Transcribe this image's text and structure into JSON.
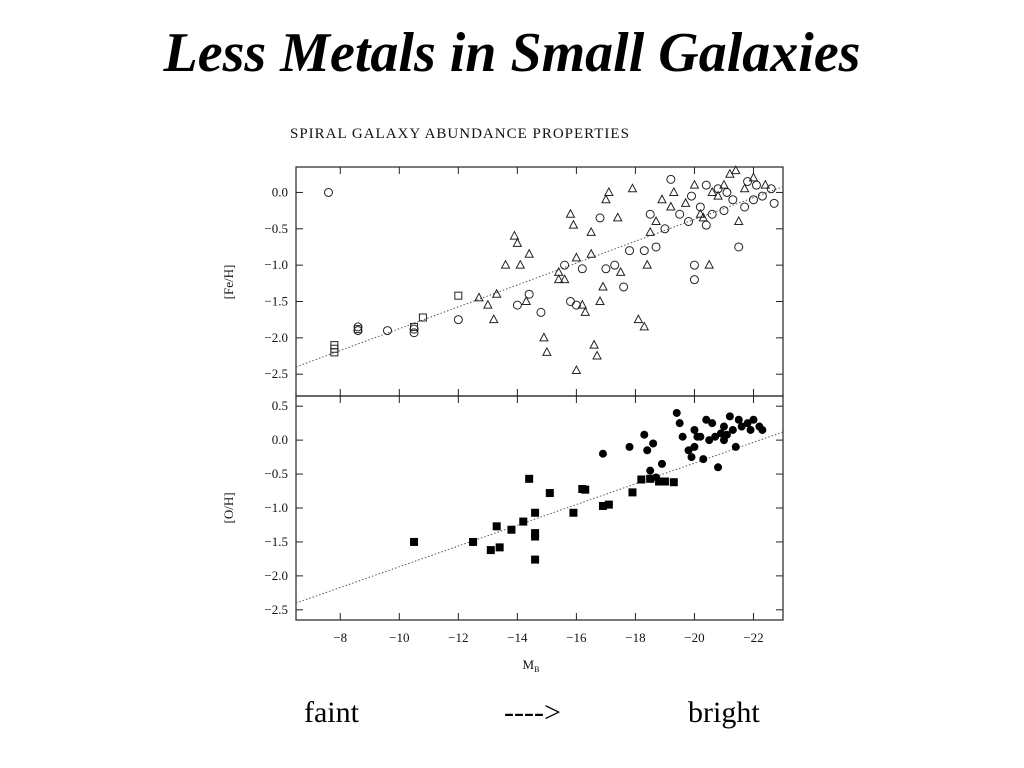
{
  "slide": {
    "title": "Less Metals in Small Galaxies",
    "caption_left": "faint",
    "caption_mid": "---->",
    "caption_right": "bright"
  },
  "chart_data": [
    {
      "type": "scatter",
      "title": "SPIRAL GALAXY ABUNDANCE PROPERTIES",
      "xlabel": "",
      "ylabel": "[Fe/H]",
      "xlim": [
        -6.5,
        -23.0
      ],
      "ylim": [
        -2.8,
        0.35
      ],
      "x_ticks": [
        -8,
        -10,
        -12,
        -14,
        -16,
        -18,
        -20,
        -22
      ],
      "x_tick_labels": [
        "−8",
        "−10",
        "−12",
        "−14",
        "−16",
        "−18",
        "−20",
        "−22"
      ],
      "y_ticks": [
        0.0,
        -0.5,
        -1.0,
        -1.5,
        -2.0,
        -2.5
      ],
      "y_tick_labels": [
        "0.0",
        "−0.5",
        "−1.0",
        "−1.5",
        "−2.0",
        "−2.5"
      ],
      "trend_line": [
        [
          -6.5,
          -2.4
        ],
        [
          -23.0,
          0.08
        ]
      ],
      "series": [
        {
          "marker": "circle",
          "points": [
            [
              -7.6,
              0.0
            ],
            [
              -8.6,
              -1.85
            ],
            [
              -8.6,
              -1.9
            ],
            [
              -9.6,
              -1.9
            ],
            [
              -10.5,
              -1.93
            ],
            [
              -10.5,
              -1.88
            ],
            [
              -12.0,
              -1.75
            ],
            [
              -14.0,
              -1.55
            ],
            [
              -14.4,
              -1.4
            ],
            [
              -14.8,
              -1.65
            ],
            [
              -15.6,
              -1.0
            ],
            [
              -15.8,
              -1.5
            ],
            [
              -16.0,
              -1.55
            ],
            [
              -16.2,
              -1.05
            ],
            [
              -16.8,
              -0.35
            ],
            [
              -17.0,
              -1.05
            ],
            [
              -17.3,
              -1.0
            ],
            [
              -17.6,
              -1.3
            ],
            [
              -17.8,
              -0.8
            ],
            [
              -18.3,
              -0.8
            ],
            [
              -18.5,
              -0.3
            ],
            [
              -18.7,
              -0.75
            ],
            [
              -19.0,
              -0.5
            ],
            [
              -19.2,
              0.18
            ],
            [
              -19.5,
              -0.3
            ],
            [
              -19.8,
              -0.4
            ],
            [
              -20.0,
              -1.0
            ],
            [
              -20.0,
              -1.2
            ],
            [
              -20.2,
              -0.2
            ],
            [
              -20.4,
              -0.45
            ],
            [
              -20.6,
              -0.3
            ],
            [
              -20.8,
              0.05
            ],
            [
              -21.0,
              -0.25
            ],
            [
              -21.3,
              -0.1
            ],
            [
              -21.5,
              -0.75
            ],
            [
              -21.7,
              -0.2
            ],
            [
              -22.0,
              -0.1
            ],
            [
              -22.3,
              -0.05
            ],
            [
              -22.6,
              0.05
            ],
            [
              -21.8,
              0.15
            ],
            [
              -20.4,
              0.1
            ],
            [
              -19.9,
              -0.05
            ],
            [
              -21.1,
              0.0
            ],
            [
              -22.1,
              0.1
            ],
            [
              -22.7,
              -0.15
            ]
          ]
        },
        {
          "marker": "square",
          "points": [
            [
              -7.8,
              -2.1
            ],
            [
              -7.8,
              -2.15
            ],
            [
              -7.8,
              -2.2
            ],
            [
              -8.6,
              -1.88
            ],
            [
              -10.5,
              -1.85
            ],
            [
              -10.8,
              -1.72
            ],
            [
              -12.0,
              -1.42
            ]
          ]
        },
        {
          "marker": "triangle",
          "points": [
            [
              -12.7,
              -1.45
            ],
            [
              -13.0,
              -1.55
            ],
            [
              -13.2,
              -1.75
            ],
            [
              -13.3,
              -1.4
            ],
            [
              -13.6,
              -1.0
            ],
            [
              -13.9,
              -0.6
            ],
            [
              -14.0,
              -0.7
            ],
            [
              -14.1,
              -1.0
            ],
            [
              -14.4,
              -0.85
            ],
            [
              -14.3,
              -1.5
            ],
            [
              -14.9,
              -2.0
            ],
            [
              -15.0,
              -2.2
            ],
            [
              -15.4,
              -1.2
            ],
            [
              -15.4,
              -1.1
            ],
            [
              -15.6,
              -1.2
            ],
            [
              -15.8,
              -0.3
            ],
            [
              -15.9,
              -0.45
            ],
            [
              -16.0,
              -0.9
            ],
            [
              -16.0,
              -2.45
            ],
            [
              -16.2,
              -1.55
            ],
            [
              -16.3,
              -1.65
            ],
            [
              -16.5,
              -0.55
            ],
            [
              -16.5,
              -0.85
            ],
            [
              -16.6,
              -2.1
            ],
            [
              -16.7,
              -2.25
            ],
            [
              -16.8,
              -1.5
            ],
            [
              -16.9,
              -1.3
            ],
            [
              -17.0,
              -0.1
            ],
            [
              -17.1,
              0.0
            ],
            [
              -17.4,
              -0.35
            ],
            [
              -17.5,
              -1.1
            ],
            [
              -17.9,
              0.05
            ],
            [
              -18.1,
              -1.75
            ],
            [
              -18.3,
              -1.85
            ],
            [
              -18.4,
              -1.0
            ],
            [
              -18.5,
              -0.55
            ],
            [
              -18.7,
              -0.4
            ],
            [
              -18.9,
              -0.1
            ],
            [
              -19.2,
              -0.2
            ],
            [
              -19.3,
              0.0
            ],
            [
              -19.7,
              -0.15
            ],
            [
              -20.0,
              0.1
            ],
            [
              -20.2,
              -0.3
            ],
            [
              -20.5,
              -1.0
            ],
            [
              -20.6,
              0.0
            ],
            [
              -20.8,
              -0.05
            ],
            [
              -21.0,
              0.1
            ],
            [
              -21.2,
              0.25
            ],
            [
              -21.4,
              0.3
            ],
            [
              -21.5,
              -0.4
            ],
            [
              -21.7,
              0.05
            ],
            [
              -22.0,
              0.2
            ],
            [
              -22.4,
              0.1
            ],
            [
              -20.3,
              -0.35
            ]
          ]
        }
      ]
    },
    {
      "type": "scatter",
      "title": "",
      "xlabel": "M_B",
      "ylabel": "[O/H]",
      "xlim": [
        -6.5,
        -23.0
      ],
      "ylim": [
        -2.65,
        0.65
      ],
      "x_ticks": [
        -8,
        -10,
        -12,
        -14,
        -16,
        -18,
        -20,
        -22
      ],
      "x_tick_labels": [
        "−8",
        "−10",
        "−12",
        "−14",
        "−16",
        "−18",
        "−20",
        "−22"
      ],
      "y_ticks": [
        0.5,
        0.0,
        -0.5,
        -1.0,
        -1.5,
        -2.0,
        -2.5
      ],
      "y_tick_labels": [
        "0.5",
        "0.0",
        "−0.5",
        "−1.0",
        "−1.5",
        "−2.0",
        "−2.5"
      ],
      "trend_line": [
        [
          -6.5,
          -2.4
        ],
        [
          -23.0,
          0.12
        ]
      ],
      "series": [
        {
          "marker": "filled-square",
          "points": [
            [
              -10.5,
              -1.5
            ],
            [
              -12.5,
              -1.5
            ],
            [
              -13.1,
              -1.62
            ],
            [
              -13.3,
              -1.27
            ],
            [
              -13.4,
              -1.58
            ],
            [
              -13.8,
              -1.32
            ],
            [
              -14.2,
              -1.2
            ],
            [
              -14.4,
              -0.57
            ],
            [
              -14.6,
              -1.07
            ],
            [
              -14.6,
              -1.37
            ],
            [
              -14.6,
              -1.42
            ],
            [
              -14.6,
              -1.76
            ],
            [
              -15.1,
              -0.78
            ],
            [
              -15.9,
              -1.07
            ],
            [
              -16.2,
              -0.72
            ],
            [
              -16.3,
              -0.73
            ],
            [
              -16.9,
              -0.97
            ],
            [
              -17.1,
              -0.95
            ],
            [
              -17.9,
              -0.77
            ],
            [
              -18.2,
              -0.58
            ],
            [
              -18.5,
              -0.57
            ],
            [
              -18.8,
              -0.61
            ],
            [
              -19.0,
              -0.61
            ],
            [
              -19.3,
              -0.62
            ]
          ]
        },
        {
          "marker": "filled-circle",
          "points": [
            [
              -16.9,
              -0.2
            ],
            [
              -17.8,
              -0.1
            ],
            [
              -18.3,
              0.08
            ],
            [
              -18.4,
              -0.15
            ],
            [
              -18.5,
              -0.45
            ],
            [
              -18.6,
              -0.05
            ],
            [
              -18.7,
              -0.55
            ],
            [
              -18.9,
              -0.35
            ],
            [
              -19.4,
              0.4
            ],
            [
              -19.5,
              0.25
            ],
            [
              -19.6,
              0.05
            ],
            [
              -19.8,
              -0.15
            ],
            [
              -19.9,
              -0.25
            ],
            [
              -20.0,
              0.15
            ],
            [
              -20.1,
              0.05
            ],
            [
              -20.2,
              0.05
            ],
            [
              -20.3,
              -0.28
            ],
            [
              -20.4,
              0.3
            ],
            [
              -20.5,
              0.0
            ],
            [
              -20.6,
              0.25
            ],
            [
              -20.7,
              0.05
            ],
            [
              -20.8,
              -0.4
            ],
            [
              -20.9,
              0.1
            ],
            [
              -21.0,
              0.2
            ],
            [
              -21.1,
              0.08
            ],
            [
              -21.2,
              0.35
            ],
            [
              -21.3,
              0.15
            ],
            [
              -21.4,
              -0.1
            ],
            [
              -21.5,
              0.3
            ],
            [
              -21.6,
              0.2
            ],
            [
              -21.8,
              0.25
            ],
            [
              -21.9,
              0.15
            ],
            [
              -22.0,
              0.3
            ],
            [
              -22.2,
              0.2
            ],
            [
              -22.3,
              0.15
            ],
            [
              -21.0,
              0.0
            ],
            [
              -20.0,
              -0.1
            ]
          ]
        }
      ]
    }
  ]
}
